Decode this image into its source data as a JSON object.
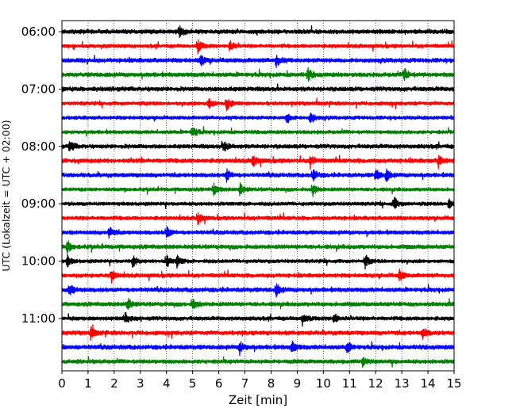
{
  "chart_data": {
    "type": "line",
    "subtype": "helicorder-seismogram",
    "title": "",
    "xlabel": "Zeit  [min]",
    "ylabel": "UTC (Lokalzeit = UTC + 02:00)",
    "xlim": [
      0,
      15
    ],
    "x_ticks": [
      0,
      1,
      2,
      3,
      4,
      5,
      6,
      7,
      8,
      9,
      10,
      11,
      12,
      13,
      14,
      15
    ],
    "x_tick_labels": [
      "0",
      "1",
      "2",
      "3",
      "4",
      "5",
      "6",
      "7",
      "8",
      "9",
      "10",
      "11",
      "12",
      "13",
      "14",
      "15"
    ],
    "vertical_gridlines": true,
    "grid_style": "dotted",
    "minutes_per_trace": 15,
    "trace_colors": [
      "#000000",
      "#ff0000",
      "#0000ff",
      "#008000"
    ],
    "traces": [
      {
        "start": "06:00",
        "events": [
          4.5
        ]
      },
      {
        "start": "06:15",
        "events": [
          5.2,
          6.4
        ]
      },
      {
        "start": "06:30",
        "events": [
          5.3,
          8.2
        ]
      },
      {
        "start": "06:45",
        "events": [
          9.4,
          13.1
        ]
      },
      {
        "start": "07:00",
        "events": []
      },
      {
        "start": "07:15",
        "events": [
          5.6,
          6.3
        ]
      },
      {
        "start": "07:30",
        "events": [
          8.6,
          9.5
        ]
      },
      {
        "start": "07:45",
        "events": [
          5.0
        ]
      },
      {
        "start": "08:00",
        "events": [
          0.3,
          6.2
        ]
      },
      {
        "start": "08:15",
        "events": [
          7.3,
          9.5,
          14.4
        ]
      },
      {
        "start": "08:30",
        "events": [
          6.3,
          9.6,
          12.0,
          12.4
        ]
      },
      {
        "start": "08:45",
        "events": [
          5.8,
          6.8,
          9.6
        ]
      },
      {
        "start": "09:00",
        "events": [
          12.7,
          14.8
        ]
      },
      {
        "start": "09:15",
        "events": [
          5.2
        ]
      },
      {
        "start": "09:30",
        "events": [
          1.8,
          4.0
        ]
      },
      {
        "start": "09:45",
        "events": [
          0.2
        ]
      },
      {
        "start": "10:00",
        "events": [
          0.2,
          2.7,
          4.0,
          4.4,
          11.6
        ]
      },
      {
        "start": "10:15",
        "events": [
          1.9,
          12.9
        ]
      },
      {
        "start": "10:30",
        "events": [
          0.3,
          8.2
        ]
      },
      {
        "start": "10:45",
        "events": [
          2.5,
          5.0
        ]
      },
      {
        "start": "11:00",
        "events": [
          2.4,
          9.2,
          10.4
        ]
      },
      {
        "start": "11:15",
        "events": [
          1.1,
          13.8
        ]
      },
      {
        "start": "11:30",
        "events": [
          6.8,
          8.8,
          10.9
        ]
      },
      {
        "start": "11:45",
        "events": [
          11.5
        ]
      }
    ],
    "y_tick_labels": [
      "06:00",
      "07:00",
      "08:00",
      "09:00",
      "10:00",
      "11:00"
    ],
    "y_tick_trace_index": [
      0,
      4,
      8,
      12,
      16,
      20
    ]
  }
}
